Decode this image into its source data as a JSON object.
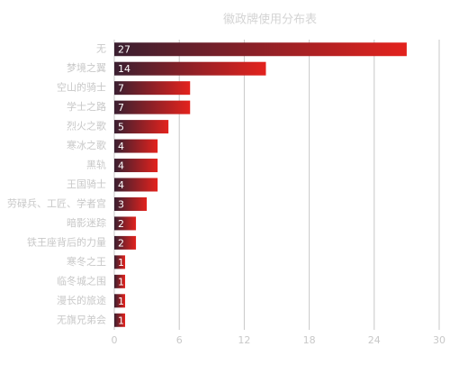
{
  "chart_data": {
    "type": "bar",
    "orientation": "horizontal",
    "title": "徽政牌使用分布表",
    "categories": [
      "无",
      "梦境之翼",
      "空山的骑士",
      "学士之路",
      "烈火之歌",
      "寒冰之歌",
      "黑轨",
      "王国骑士",
      "劳碌兵、工匠、学者宫",
      "暗影迷踪",
      "铁王座背后的力量",
      "寒冬之王",
      "临冬城之围",
      "漫长的旅途",
      "无旗兄弟会"
    ],
    "values": [
      27,
      14,
      7,
      7,
      5,
      4,
      4,
      4,
      3,
      2,
      2,
      1,
      1,
      1,
      1
    ],
    "xlim": [
      0,
      30
    ],
    "xticks": [
      0,
      6,
      12,
      18,
      24,
      30
    ],
    "grid": true
  }
}
